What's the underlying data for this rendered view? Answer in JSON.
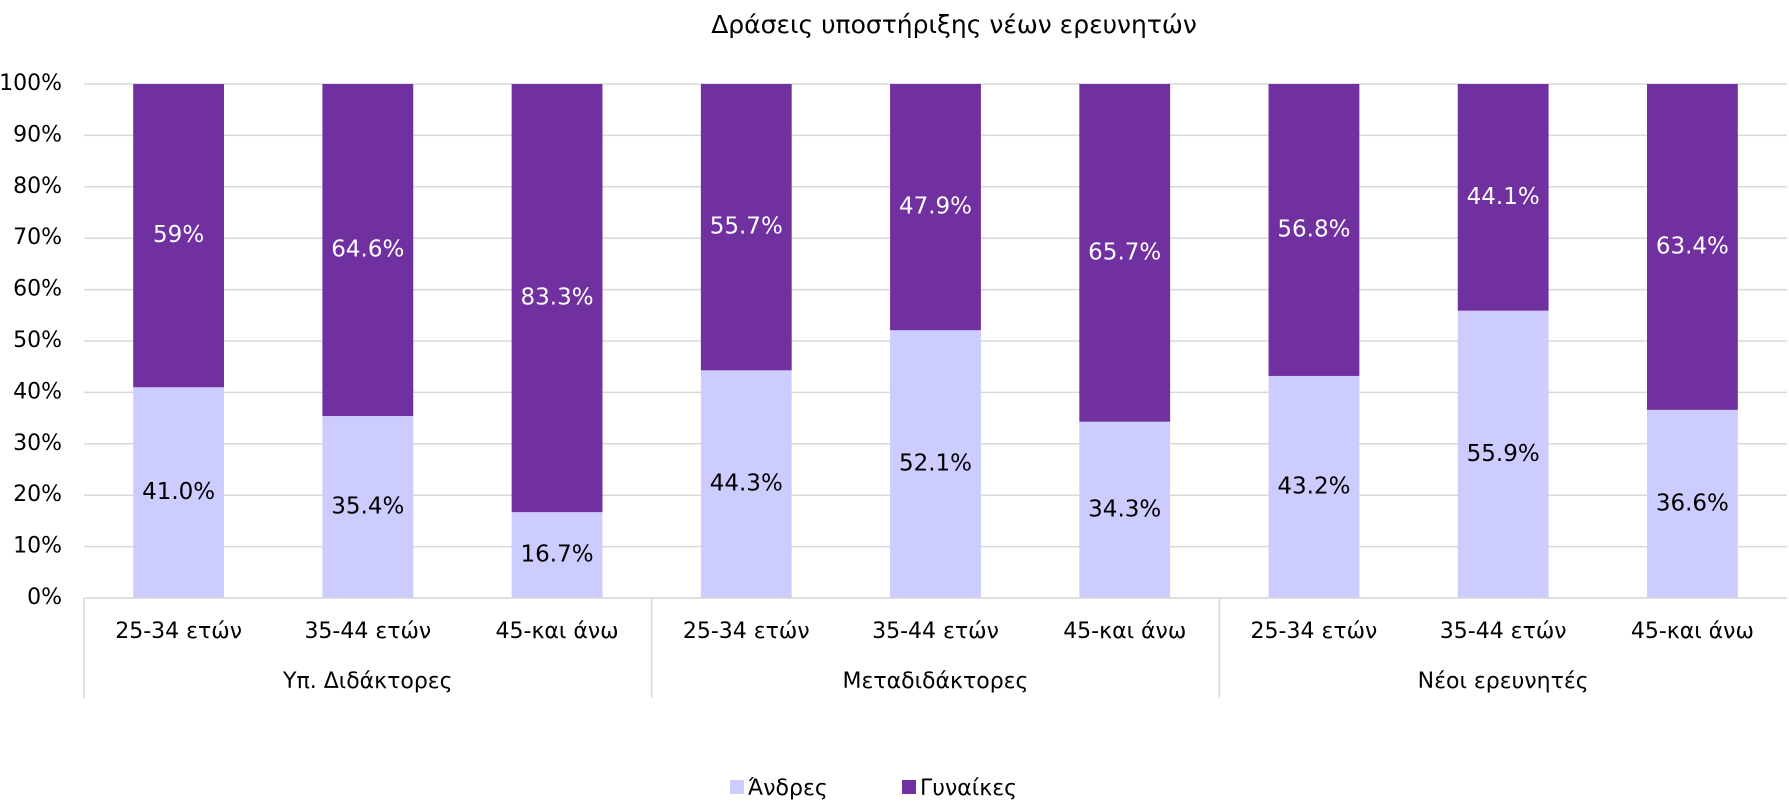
{
  "chart_data": {
    "type": "stacked_bar",
    "title": "Δράσεις υποστήριξης νέων ερευνητών",
    "groups": [
      {
        "label": "Υπ. Διδάκτορες",
        "categories": [
          "25-34 ετών",
          "35-44 ετών",
          "45-και άνω"
        ]
      },
      {
        "label": "Μεταδιδάκτορες",
        "categories": [
          "25-34 ετών",
          "35-44 ετών",
          "45-και άνω"
        ]
      },
      {
        "label": "Νέοι ερευνητές",
        "categories": [
          "25-34 ετών",
          "35-44 ετών",
          "45-και άνω"
        ]
      }
    ],
    "series": [
      {
        "name": "Άνδρες",
        "color": "#ccccff",
        "values": [
          41.0,
          35.4,
          16.7,
          44.3,
          52.1,
          34.3,
          43.2,
          55.9,
          36.6
        ],
        "value_labels": [
          "41.0%",
          "35.4%",
          "16.7%",
          "44.3%",
          "52.1%",
          "34.3%",
          "43.2%",
          "55.9%",
          "36.6%"
        ]
      },
      {
        "name": "Γυναίκες",
        "color": "#7030a0",
        "values": [
          59,
          64.6,
          83.3,
          55.7,
          47.9,
          65.7,
          56.8,
          44.1,
          63.4
        ],
        "value_labels": [
          "59%",
          "64.6%",
          "83.3%",
          "55.7%",
          "47.9%",
          "65.7%",
          "56.8%",
          "44.1%",
          "63.4%"
        ]
      }
    ],
    "ylim": [
      0,
      100
    ],
    "yticks": [
      {
        "value": 0,
        "label": "0%"
      },
      {
        "value": 10,
        "label": "10%"
      },
      {
        "value": 20,
        "label": "20%"
      },
      {
        "value": 30,
        "label": "30%"
      },
      {
        "value": 40,
        "label": "40%"
      },
      {
        "value": 50,
        "label": "50%"
      },
      {
        "value": 60,
        "label": "60%"
      },
      {
        "value": 70,
        "label": "70%"
      },
      {
        "value": 80,
        "label": "80%"
      },
      {
        "value": 90,
        "label": "90%"
      },
      {
        "value": 100,
        "label": "100%"
      }
    ],
    "grid": true,
    "legend": "bottom"
  }
}
